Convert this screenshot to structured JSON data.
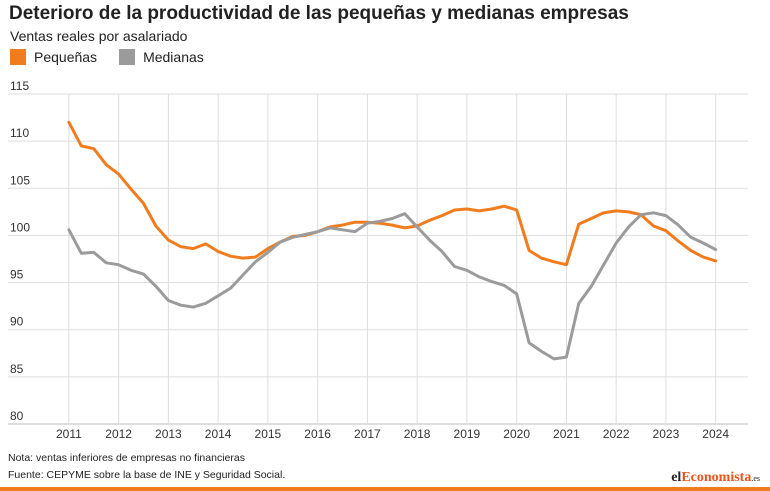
{
  "chart_data": {
    "type": "line",
    "title": "Deterioro de la productividad de las pequeñas y medianas empresas",
    "subtitle": "Ventas reales por asalariado",
    "xlabel": "",
    "ylabel": "",
    "legend_position": "top-left",
    "grid": true,
    "x_ticks": [
      "2011",
      "2012",
      "2013",
      "2014",
      "2015",
      "2016",
      "2017",
      "2018",
      "2019",
      "2020",
      "2021",
      "2022",
      "2023",
      "2024"
    ],
    "xlim": [
      2010.5,
      2024.65
    ],
    "y_ticks": [
      80,
      85,
      90,
      95,
      100,
      105,
      110,
      115
    ],
    "ylim": [
      80,
      115
    ],
    "x": [
      2011,
      2011.25,
      2011.5,
      2011.75,
      2012,
      2012.25,
      2012.5,
      2012.75,
      2013,
      2013.25,
      2013.5,
      2013.75,
      2014,
      2014.25,
      2014.5,
      2014.75,
      2015,
      2015.25,
      2015.5,
      2015.75,
      2016,
      2016.25,
      2016.5,
      2016.75,
      2017,
      2017.25,
      2017.5,
      2017.75,
      2018,
      2018.25,
      2018.5,
      2018.75,
      2019,
      2019.25,
      2019.5,
      2019.75,
      2020,
      2020.25,
      2020.5,
      2020.75,
      2021,
      2021.25,
      2021.5,
      2021.75,
      2022,
      2022.25,
      2022.5,
      2022.75,
      2023,
      2023.25,
      2023.5,
      2023.75,
      2024
    ],
    "series": [
      {
        "name": "Pequeñas",
        "color": "#f07c1e",
        "values": [
          112,
          109.5,
          109.2,
          107.5,
          106.5,
          104.9,
          103.4,
          101,
          99.5,
          98.8,
          98.6,
          99.1,
          98.3,
          97.8,
          97.6,
          97.7,
          98.6,
          99.3,
          99.9,
          100,
          100.4,
          100.9,
          101.1,
          101.4,
          101.4,
          101.3,
          101.1,
          100.8,
          101,
          101.6,
          102.1,
          102.7,
          102.8,
          102.6,
          102.8,
          103.1,
          102.7,
          98.4,
          97.6,
          97.2,
          96.9,
          101.2,
          101.8,
          102.4,
          102.6,
          102.5,
          102.2,
          101,
          100.5,
          99.4,
          98.4,
          97.7,
          97.3
        ]
      },
      {
        "name": "Medianas",
        "color": "#9b9b9b",
        "values": [
          100.6,
          98.1,
          98.2,
          97.1,
          96.9,
          96.3,
          95.9,
          94.6,
          93.1,
          92.6,
          92.4,
          92.8,
          93.6,
          94.4,
          95.8,
          97.2,
          98.2,
          99.3,
          99.8,
          100.1,
          100.4,
          100.8,
          100.6,
          100.4,
          101.3,
          101.5,
          101.8,
          102.3,
          100.9,
          99.5,
          98.3,
          96.7,
          96.3,
          95.6,
          95.1,
          94.7,
          93.8,
          88.6,
          87.7,
          86.9,
          87.1,
          92.8,
          94.6,
          96.9,
          99.2,
          100.9,
          102.2,
          102.4,
          102.1,
          101.1,
          99.8,
          99.2,
          98.5
        ]
      }
    ]
  },
  "notes": {
    "nota": "Nota: ventas inferiores de empresas no financieras",
    "fuente": "Fuente: CEPYME sobre la base de INE y Seguridad Social."
  },
  "brand": {
    "part1": "el",
    "part2": "Economista",
    "suffix": ".es"
  }
}
